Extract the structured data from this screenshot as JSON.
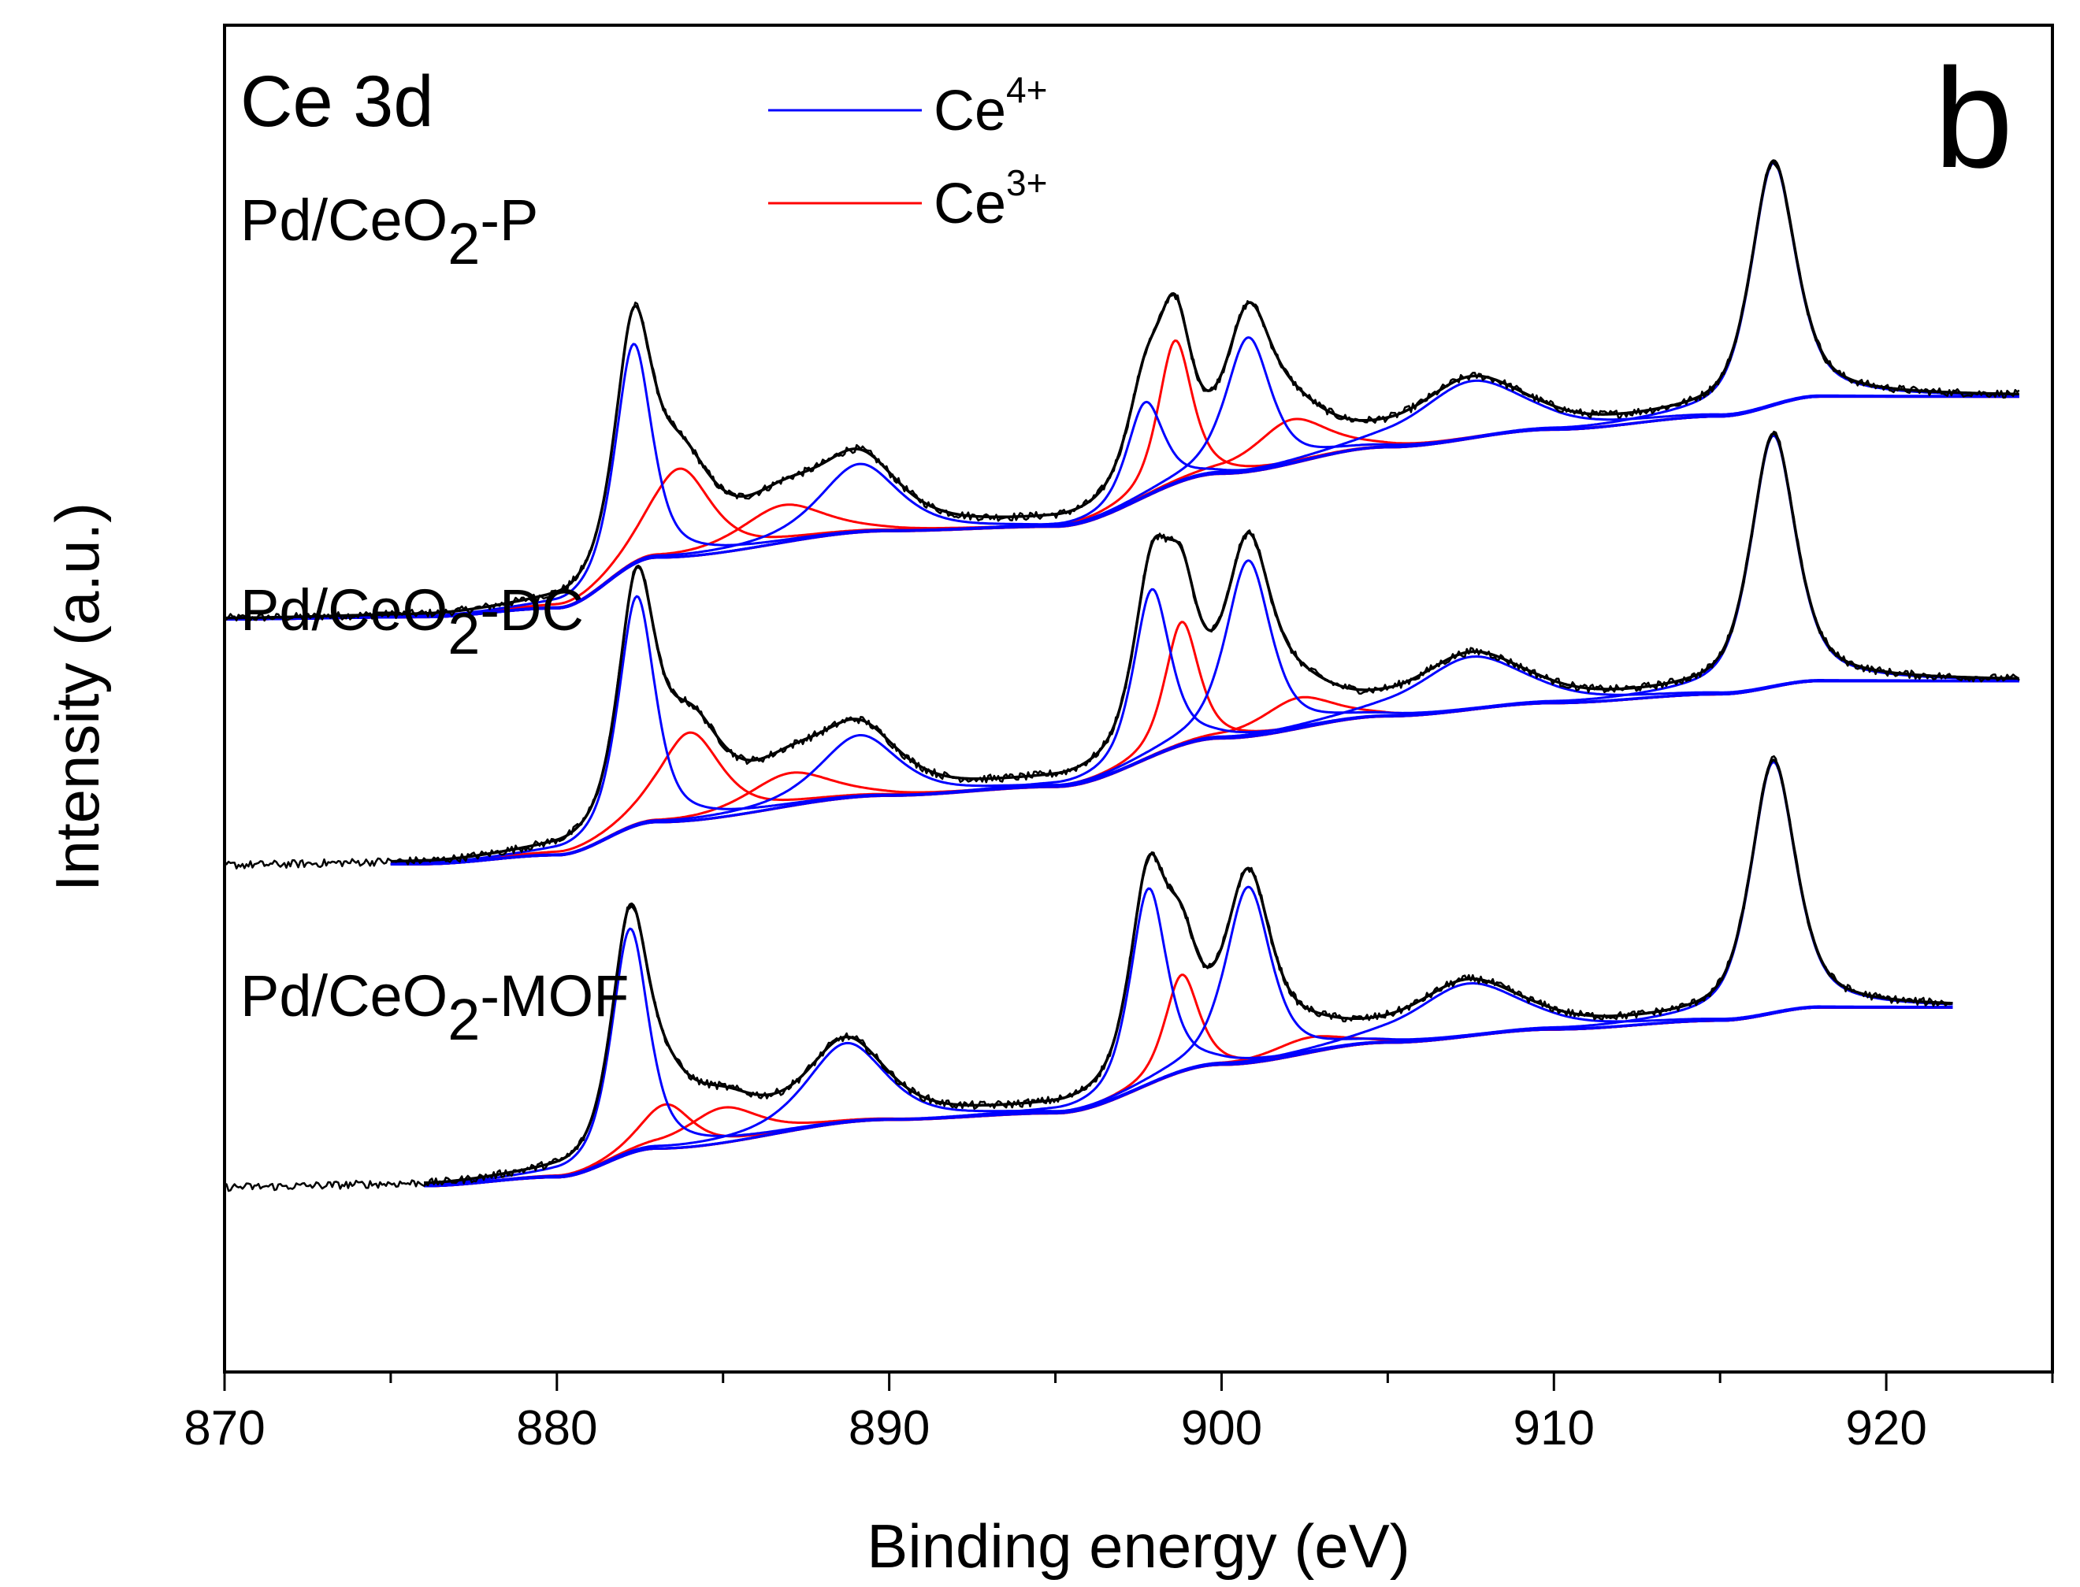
{
  "chart_data": {
    "type": "line",
    "title": "Ce 3d",
    "panel_label": "b",
    "xlabel": "Binding energy (eV)",
    "ylabel": "Intensity (a.u.)",
    "xlim": [
      870,
      925
    ],
    "x_major_ticks": [
      870,
      880,
      890,
      900,
      910,
      920
    ],
    "x_tick_labels": [
      "870",
      "880",
      "890",
      "900",
      "910",
      "920"
    ],
    "x_minor_step": 5,
    "y_ticks": false,
    "legend": {
      "placement": "top-center",
      "entries": [
        {
          "name": "Ce",
          "sup": "4+",
          "color": "#0000ff"
        },
        {
          "name": "Ce",
          "sup": "3+",
          "color": "#ff0000"
        }
      ]
    },
    "colors": {
      "raw": "#000000",
      "envelope": "#000000",
      "ce4": "#0000ff",
      "ce3": "#ff0000"
    },
    "samples": [
      {
        "name": "Pd/CeO2-P",
        "label_main": "Pd/CeO",
        "label_sub": "2",
        "label_suffix": "-P",
        "offset": 0.56,
        "x_start": 870,
        "baseline": [
          [
            870,
            0
          ],
          [
            876,
            0.005
          ],
          [
            880,
            0.025
          ],
          [
            883,
            0.14
          ],
          [
            890,
            0.2
          ],
          [
            895,
            0.21
          ],
          [
            900,
            0.33
          ],
          [
            905,
            0.39
          ],
          [
            910,
            0.43
          ],
          [
            915,
            0.46
          ],
          [
            918,
            0.505
          ],
          [
            924,
            0.505
          ]
        ],
        "ce4_peaks": [
          {
            "center": 882.3,
            "height": 0.5,
            "width": 0.65
          },
          {
            "center": 889.1,
            "height": 0.155,
            "width": 1.4
          },
          {
            "center": 897.7,
            "height": 0.215,
            "width": 0.65
          },
          {
            "center": 900.8,
            "height": 0.305,
            "width": 0.8
          },
          {
            "center": 907.5,
            "height": 0.13,
            "width": 1.9
          },
          {
            "center": 916.6,
            "height": 0.55,
            "width": 0.8
          }
        ],
        "ce3_peaks": [
          {
            "center": 883.7,
            "height": 0.2,
            "width": 1.1
          },
          {
            "center": 886.8,
            "height": 0.085,
            "width": 1.5
          },
          {
            "center": 898.6,
            "height": 0.325,
            "width": 0.6
          },
          {
            "center": 902.1,
            "height": 0.1,
            "width": 1.3
          }
        ]
      },
      {
        "name": "Pd/CeO2-DC",
        "label_main": "Pd/CeO",
        "label_sub": "2",
        "label_suffix": "-DC",
        "offset": 0.0,
        "x_start": 875,
        "baseline": [
          [
            870,
            0
          ],
          [
            876,
            0.005
          ],
          [
            880,
            0.025
          ],
          [
            883,
            0.1
          ],
          [
            890,
            0.16
          ],
          [
            895,
            0.18
          ],
          [
            900,
            0.29
          ],
          [
            905,
            0.34
          ],
          [
            910,
            0.37
          ],
          [
            915,
            0.39
          ],
          [
            918,
            0.42
          ],
          [
            924,
            0.42
          ]
        ],
        "ce4_peaks": [
          {
            "center": 882.4,
            "height": 0.52,
            "width": 0.65
          },
          {
            "center": 889.1,
            "height": 0.14,
            "width": 1.4
          },
          {
            "center": 897.9,
            "height": 0.38,
            "width": 0.65
          },
          {
            "center": 900.8,
            "height": 0.4,
            "width": 0.8
          },
          {
            "center": 907.5,
            "height": 0.12,
            "width": 1.9
          },
          {
            "center": 916.6,
            "height": 0.57,
            "width": 0.8
          }
        ],
        "ce3_peaks": [
          {
            "center": 884.0,
            "height": 0.2,
            "width": 1.1
          },
          {
            "center": 887.0,
            "height": 0.075,
            "width": 1.5
          },
          {
            "center": 898.8,
            "height": 0.28,
            "width": 0.6
          },
          {
            "center": 902.3,
            "height": 0.07,
            "width": 1.3
          }
        ]
      },
      {
        "name": "Pd/CeO2-MOF",
        "label_main": "Pd/CeO",
        "label_sub": "2",
        "label_suffix": "-MOF",
        "offset": -0.73,
        "x_start": 876,
        "x_end": 922,
        "baseline": [
          [
            870,
            0
          ],
          [
            876,
            0.005
          ],
          [
            880,
            0.025
          ],
          [
            883,
            0.09
          ],
          [
            890,
            0.155
          ],
          [
            895,
            0.17
          ],
          [
            900,
            0.28
          ],
          [
            905,
            0.33
          ],
          [
            910,
            0.36
          ],
          [
            915,
            0.38
          ],
          [
            918,
            0.41
          ],
          [
            924,
            0.41
          ]
        ],
        "ce4_peaks": [
          {
            "center": 882.2,
            "height": 0.51,
            "width": 0.65
          },
          {
            "center": 888.7,
            "height": 0.18,
            "width": 1.4
          },
          {
            "center": 897.8,
            "height": 0.445,
            "width": 0.65
          },
          {
            "center": 900.8,
            "height": 0.4,
            "width": 0.8
          },
          {
            "center": 907.4,
            "height": 0.12,
            "width": 1.9
          },
          {
            "center": 916.6,
            "height": 0.57,
            "width": 0.8
          }
        ],
        "ce3_peaks": [
          {
            "center": 883.3,
            "height": 0.1,
            "width": 0.9
          },
          {
            "center": 885.0,
            "height": 0.08,
            "width": 1.3
          },
          {
            "center": 898.8,
            "height": 0.22,
            "width": 0.6
          },
          {
            "center": 902.6,
            "height": 0.035,
            "width": 1.3
          }
        ]
      }
    ]
  }
}
